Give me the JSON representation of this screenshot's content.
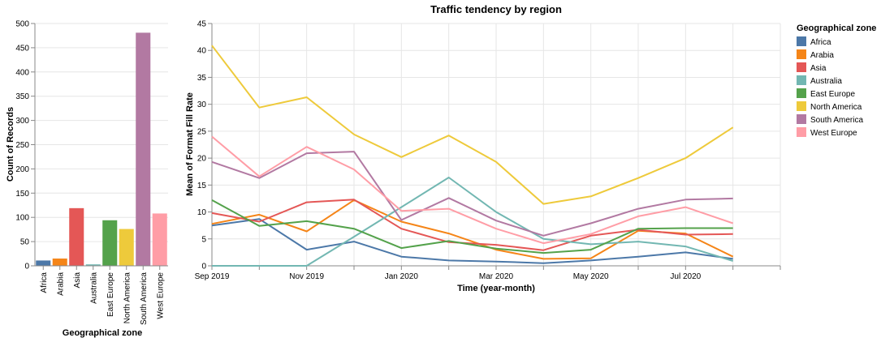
{
  "chart_data": [
    {
      "type": "bar",
      "xlabel": "Geographical zone",
      "ylabel": "Count of Records",
      "ylim": [
        0,
        500
      ],
      "yticks": [
        0,
        50,
        100,
        150,
        200,
        250,
        300,
        350,
        400,
        450,
        500
      ],
      "categories": [
        "Africa",
        "Arabia",
        "Asia",
        "Australia",
        "East Europe",
        "North America",
        "South America",
        "West Europe"
      ],
      "values": [
        11,
        15,
        119,
        3,
        94,
        76,
        481,
        108
      ],
      "colors": [
        "#4c78a8",
        "#f58518",
        "#e45756",
        "#72b7b2",
        "#54a24b",
        "#eeca3b",
        "#b279a2",
        "#ff9da6"
      ],
      "grid": true
    },
    {
      "type": "line",
      "title": "Traffic tendency by region",
      "xlabel": "Time (year-month)",
      "ylabel": "Mean of Format Fill Rate",
      "ylim": [
        0,
        45
      ],
      "yticks": [
        0,
        5,
        10,
        15,
        20,
        25,
        30,
        35,
        40,
        45
      ],
      "x": [
        "2019-09",
        "2019-10",
        "2019-11",
        "2019-12",
        "2020-01",
        "2020-02",
        "2020-03",
        "2020-04",
        "2020-05",
        "2020-06",
        "2020-07",
        "2020-08"
      ],
      "xtick_labels": [
        {
          "x": "2019-09",
          "label": "Sep 2019"
        },
        {
          "x": "2019-11",
          "label": "Nov 2019"
        },
        {
          "x": "2020-01",
          "label": "Jan 2020"
        },
        {
          "x": "2020-03",
          "label": "Mar 2020"
        },
        {
          "x": "2020-05",
          "label": "May 2020"
        },
        {
          "x": "2020-07",
          "label": "Jul 2020"
        }
      ],
      "grid": true,
      "legend": {
        "title": "Geographical zone",
        "placement": "right"
      },
      "series": [
        {
          "name": "Africa",
          "color": "#4c78a8",
          "values": [
            7.5,
            8.7,
            3.0,
            4.5,
            1.7,
            1.0,
            0.8,
            0.5,
            1.0,
            1.7,
            2.5,
            1.3
          ]
        },
        {
          "name": "Arabia",
          "color": "#f58518",
          "values": [
            7.8,
            9.5,
            6.4,
            12.2,
            8.2,
            6.0,
            3.0,
            1.3,
            1.4,
            6.5,
            6.0,
            1.7
          ]
        },
        {
          "name": "Asia",
          "color": "#e45756",
          "values": [
            9.8,
            8.2,
            11.8,
            12.3,
            6.9,
            4.4,
            3.9,
            2.9,
            5.6,
            6.7,
            5.8,
            5.9
          ]
        },
        {
          "name": "Australia",
          "color": "#72b7b2",
          "values": [
            0.0,
            0.0,
            0.0,
            5.4,
            10.9,
            16.4,
            10.0,
            5.0,
            4.0,
            4.5,
            3.6,
            0.9
          ]
        },
        {
          "name": "East Europe",
          "color": "#54a24b",
          "values": [
            12.2,
            7.4,
            8.3,
            6.9,
            3.3,
            4.6,
            3.2,
            2.4,
            3.0,
            6.9,
            7.0,
            7.0
          ]
        },
        {
          "name": "North America",
          "color": "#eeca3b",
          "values": [
            40.9,
            29.4,
            31.3,
            24.4,
            20.2,
            24.2,
            19.3,
            11.5,
            12.9,
            16.3,
            20.0,
            25.7
          ]
        },
        {
          "name": "South America",
          "color": "#b279a2",
          "values": [
            19.3,
            16.3,
            20.9,
            21.2,
            8.5,
            12.6,
            8.4,
            5.6,
            7.9,
            10.6,
            12.3,
            12.5
          ]
        },
        {
          "name": "West Europe",
          "color": "#ff9da6",
          "values": [
            24.0,
            16.6,
            22.1,
            17.9,
            10.2,
            10.6,
            6.9,
            4.2,
            5.9,
            9.2,
            10.9,
            7.9
          ]
        }
      ]
    }
  ]
}
